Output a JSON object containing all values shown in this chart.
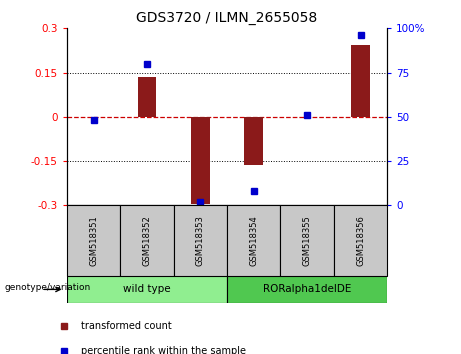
{
  "title": "GDS3720 / ILMN_2655058",
  "samples": [
    "GSM518351",
    "GSM518352",
    "GSM518353",
    "GSM518354",
    "GSM518355",
    "GSM518356"
  ],
  "transformed_counts": [
    0.0,
    0.135,
    -0.295,
    -0.165,
    0.0,
    0.245
  ],
  "percentile_ranks": [
    48,
    80,
    2,
    8,
    51,
    96
  ],
  "ylim_left": [
    -0.3,
    0.3
  ],
  "ylim_right": [
    0,
    100
  ],
  "yticks_left": [
    -0.3,
    -0.15,
    0.0,
    0.15,
    0.3
  ],
  "yticks_right": [
    0,
    25,
    50,
    75,
    100
  ],
  "ytick_labels_left": [
    "-0.3",
    "-0.15",
    "0",
    "0.15",
    "0.3"
  ],
  "ytick_labels_right": [
    "0",
    "25",
    "50",
    "75",
    "100%"
  ],
  "bar_color": "#8B1A1A",
  "dot_color": "#0000CC",
  "zero_line_color": "#CC0000",
  "grid_color": "black",
  "group1_label": "wild type",
  "group2_label": "RORalpha1delDE",
  "group1_color": "#90EE90",
  "group2_color": "#50C850",
  "genotype_label": "genotype/variation",
  "legend_red_label": "transformed count",
  "legend_blue_label": "percentile rank within the sample",
  "bar_width": 0.35,
  "title_fontsize": 10,
  "tick_fontsize": 7.5,
  "label_fontsize": 7.5,
  "header_bg_color": "#C8C8C8",
  "header_text_color": "black",
  "figsize": [
    4.61,
    3.54
  ],
  "dpi": 100
}
